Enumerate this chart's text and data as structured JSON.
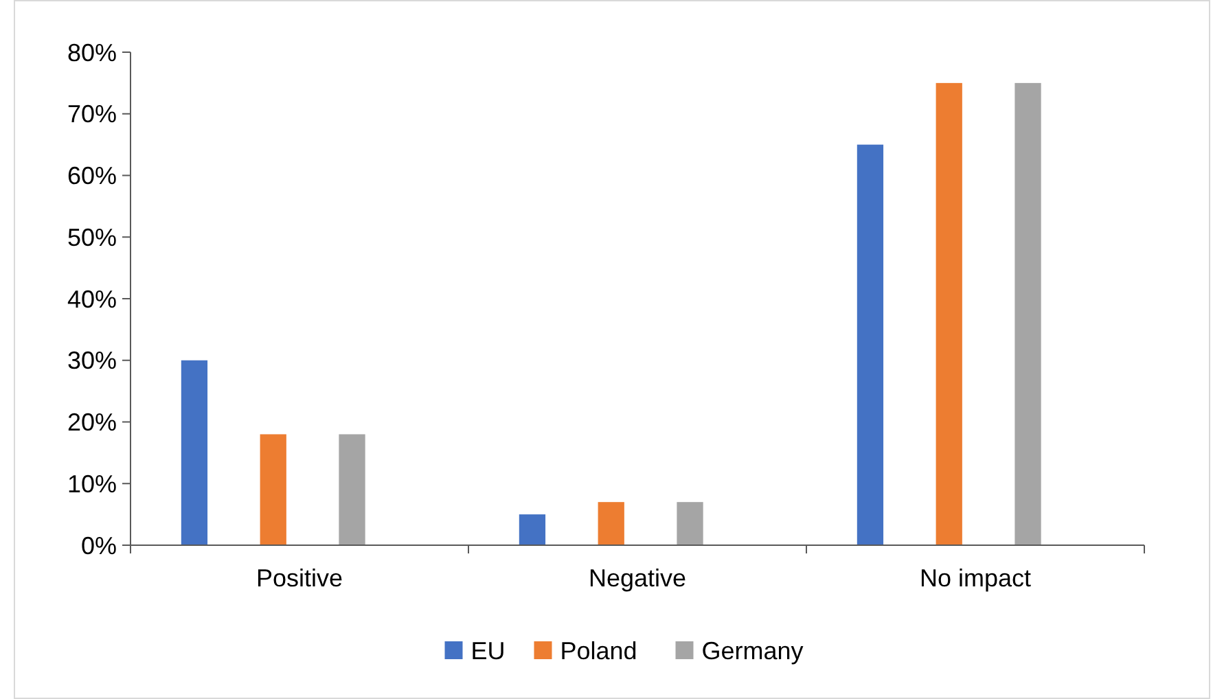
{
  "chart_data": {
    "type": "bar",
    "categories": [
      "Positive",
      "Negative",
      "No impact"
    ],
    "series": [
      {
        "name": "EU",
        "color": "#4472c4",
        "values": [
          30,
          5,
          65
        ]
      },
      {
        "name": "Poland",
        "color": "#ed7d31",
        "values": [
          18,
          7,
          75
        ]
      },
      {
        "name": "Germany",
        "color": "#a5a5a5",
        "values": [
          18,
          7,
          75
        ]
      }
    ],
    "ylim": [
      0,
      80
    ],
    "yticks": [
      {
        "value": 0,
        "label": "0%"
      },
      {
        "value": 10,
        "label": "10%"
      },
      {
        "value": 20,
        "label": "20%"
      },
      {
        "value": 30,
        "label": "30%"
      },
      {
        "value": 40,
        "label": "40%"
      },
      {
        "value": 50,
        "label": "50%"
      },
      {
        "value": 60,
        "label": "60%"
      },
      {
        "value": 70,
        "label": "70%"
      },
      {
        "value": 80,
        "label": "80%"
      }
    ],
    "grid": false,
    "legend": "bottom"
  }
}
